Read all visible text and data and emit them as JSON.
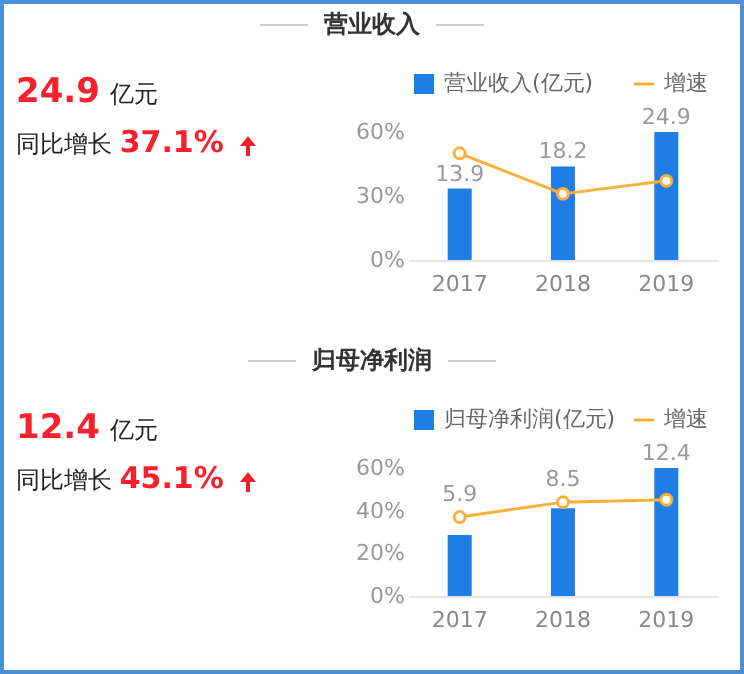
{
  "chart_data": [
    {
      "type": "other",
      "title": "营业收入",
      "annotations": [
        "24.9",
        "亿元",
        "同比增长",
        "37.1%"
      ]
    },
    {
      "type": "bar",
      "categories": [
        "2017",
        "2018",
        "2019"
      ],
      "series": [
        {
          "name": "营业收入(亿元)",
          "type": "bar",
          "color": "#1f7de6",
          "axis": "y2",
          "values": [
            13.9,
            18.2,
            24.9
          ],
          "value_labels": [
            "13.9",
            "18.2",
            "24.9"
          ]
        },
        {
          "name": "增速",
          "type": "line",
          "color": "#fbb03b",
          "values": [
            50,
            31,
            37.1
          ]
        }
      ],
      "ylim": [
        0,
        60
      ],
      "yticks": [
        {
          "value": 0,
          "label": "0%"
        },
        {
          "value": 30,
          "label": "30%"
        },
        {
          "value": 60,
          "label": "60%"
        }
      ],
      "legend": "top right",
      "marker": "circle"
    },
    {
      "type": "other",
      "title": "归母净利润",
      "annotations": [
        "12.4",
        "亿元",
        "同比增长",
        "45.1%"
      ]
    },
    {
      "type": "bar",
      "categories": [
        "2017",
        "2018",
        "2019"
      ],
      "series": [
        {
          "name": "归母净利润(亿元)",
          "type": "bar",
          "color": "#1f7de6",
          "axis": "y2",
          "values": [
            5.9,
            8.5,
            12.4
          ],
          "value_labels": [
            "5.9",
            "8.5",
            "12.4"
          ]
        },
        {
          "name": "增速",
          "type": "line",
          "color": "#fbb03b",
          "values": [
            37,
            44,
            45.1
          ]
        }
      ],
      "ylim": [
        0,
        60
      ],
      "yticks": [
        {
          "value": 0,
          "label": "0%"
        },
        {
          "value": 20,
          "label": "20%"
        },
        {
          "value": 40,
          "label": "40%"
        },
        {
          "value": 60,
          "label": "60%"
        }
      ],
      "legend": "top right",
      "marker": "circle"
    }
  ]
}
